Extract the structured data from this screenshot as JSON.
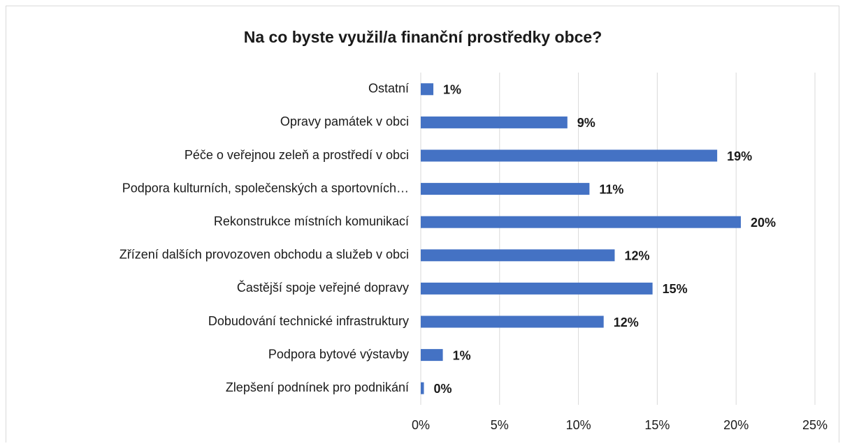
{
  "chart_data": {
    "type": "bar",
    "orientation": "horizontal",
    "title": "Na co byste využil/a finanční prostředky obce?",
    "categories": [
      "Ostatní",
      "Opravy památek v obci",
      "Péče o veřejnou zeleň a prostředí v obci",
      "Podpora kulturních, společenských a sportovních…",
      "Rekonstrukce místních komunikací",
      "Zřízení dalších provozoven obchodu a služeb v obci",
      "Častější spoje veřejné dopravy",
      "Dobudování technické infrastruktury",
      "Podpora bytové výstavby",
      "Zlepšení podnínek pro podnikání"
    ],
    "values": [
      0.8,
      9.3,
      18.8,
      10.7,
      20.3,
      12.3,
      14.7,
      11.6,
      1.4,
      0.2
    ],
    "value_labels": [
      "1%",
      "9%",
      "19%",
      "11%",
      "20%",
      "12%",
      "15%",
      "12%",
      "1%",
      "0%"
    ],
    "color": "#4472c4",
    "xlim": [
      0,
      25
    ],
    "xticks": [
      {
        "value": 0,
        "label": "0%"
      },
      {
        "value": 5,
        "label": "5%"
      },
      {
        "value": 10,
        "label": "10%"
      },
      {
        "value": 15,
        "label": "15%"
      },
      {
        "value": 20,
        "label": "20%"
      },
      {
        "value": 25,
        "label": "25%"
      }
    ],
    "grid": true
  }
}
